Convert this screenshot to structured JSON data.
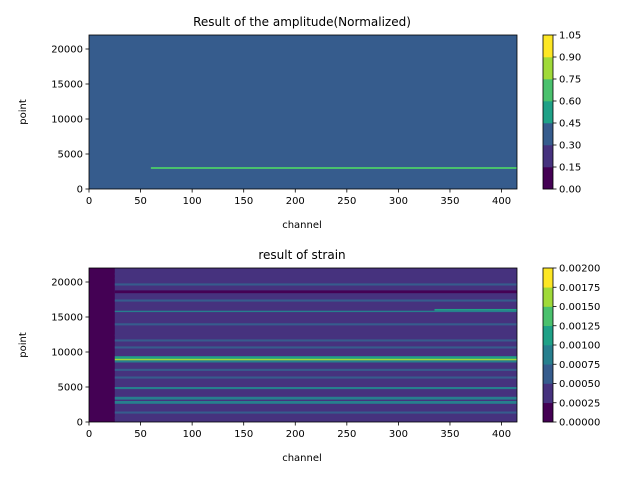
{
  "chart_data": [
    {
      "type": "heatmap",
      "title": "Result of the amplitude(Normalized)",
      "xlabel": "channel",
      "ylabel": "point",
      "xlim": [
        0,
        415
      ],
      "ylim": [
        0,
        22000
      ],
      "x_ticks": [
        0,
        50,
        100,
        150,
        200,
        250,
        300,
        350,
        400
      ],
      "y_ticks": [
        0,
        5000,
        10000,
        15000,
        20000
      ],
      "colorbar": {
        "ticks": [
          0.0,
          0.15,
          0.3,
          0.45,
          0.6,
          0.75,
          0.9,
          1.05
        ],
        "tick_labels": [
          "0.00",
          "0.15",
          "0.30",
          "0.45",
          "0.60",
          "0.75",
          "0.90",
          "1.05"
        ],
        "range": [
          0.0,
          1.05
        ]
      },
      "background_value": 0.4,
      "features": [
        {
          "x": [
            60,
            415
          ],
          "y": 3000,
          "value": 0.7
        }
      ]
    },
    {
      "type": "heatmap",
      "title": "result of strain",
      "xlabel": "channel",
      "ylabel": "point",
      "xlim": [
        0,
        415
      ],
      "ylim": [
        0,
        22000
      ],
      "x_ticks": [
        0,
        50,
        100,
        150,
        200,
        250,
        300,
        350,
        400
      ],
      "y_ticks": [
        0,
        5000,
        10000,
        15000,
        20000
      ],
      "colorbar": {
        "ticks": [
          0.0,
          0.00025,
          0.0005,
          0.00075,
          0.001,
          0.00125,
          0.0015,
          0.00175,
          0.002
        ],
        "tick_labels": [
          "0.00000",
          "0.00025",
          "0.00050",
          "0.00075",
          "0.00100",
          "0.00125",
          "0.00150",
          "0.00175",
          "0.00200"
        ],
        "range": [
          0.0,
          0.002
        ]
      },
      "background_value": 0.0004,
      "features": [
        {
          "x": [
            0,
            15
          ],
          "y0": 0,
          "y1": 22000,
          "value": 0.0001
        },
        {
          "x": [
            15,
            25
          ],
          "y0": 0,
          "y1": 22000,
          "value": 0.0002
        },
        {
          "x": [
            25,
            415
          ],
          "y0": 8800,
          "y1": 9050,
          "value": 0.0015
        },
        {
          "x": [
            25,
            415
          ],
          "y0": 9050,
          "y1": 9400,
          "value": 0.0011
        },
        {
          "x": [
            25,
            415
          ],
          "y0": 8500,
          "y1": 8800,
          "value": 0.0009
        },
        {
          "x": [
            335,
            415
          ],
          "y0": 15900,
          "y1": 16150,
          "value": 0.0012
        },
        {
          "x": [
            25,
            415
          ],
          "y0": 15700,
          "y1": 15900,
          "value": 0.0009
        },
        {
          "x": [
            25,
            415
          ],
          "y0": 3200,
          "y1": 3600,
          "value": 0.0009
        },
        {
          "x": [
            25,
            415
          ],
          "y0": 2600,
          "y1": 3000,
          "value": 0.0008
        },
        {
          "x": [
            25,
            415
          ],
          "y0": 4700,
          "y1": 5000,
          "value": 0.00075
        },
        {
          "x": [
            25,
            415
          ],
          "y0": 6200,
          "y1": 6500,
          "value": 0.00072
        },
        {
          "x": [
            25,
            415
          ],
          "y0": 7300,
          "y1": 7600,
          "value": 0.00072
        },
        {
          "x": [
            25,
            415
          ],
          "y0": 10500,
          "y1": 10800,
          "value": 0.00065
        },
        {
          "x": [
            25,
            415
          ],
          "y0": 11500,
          "y1": 11800,
          "value": 0.00062
        },
        {
          "x": [
            25,
            415
          ],
          "y0": 13800,
          "y1": 14100,
          "value": 0.00062
        },
        {
          "x": [
            25,
            415
          ],
          "y0": 17200,
          "y1": 17500,
          "value": 0.00065
        },
        {
          "x": [
            25,
            415
          ],
          "y0": 19500,
          "y1": 19800,
          "value": 0.0006
        },
        {
          "x": [
            25,
            415
          ],
          "y0": 1200,
          "y1": 1500,
          "value": 0.0007
        },
        {
          "x": [
            25,
            415
          ],
          "y0": 18400,
          "y1": 18800,
          "value": 0.0002
        },
        {
          "x": [
            25,
            415
          ],
          "y0": 21000,
          "y1": 21300,
          "value": 0.00025
        },
        {
          "x": [
            25,
            415
          ],
          "y0": 12300,
          "y1": 12500,
          "value": 0.00028
        },
        {
          "x": [
            25,
            415
          ],
          "y0": 20400,
          "y1": 20600,
          "value": 0.0003
        },
        {
          "x": [
            25,
            415
          ],
          "y0": 400,
          "y1": 700,
          "value": 0.0003
        }
      ]
    }
  ]
}
